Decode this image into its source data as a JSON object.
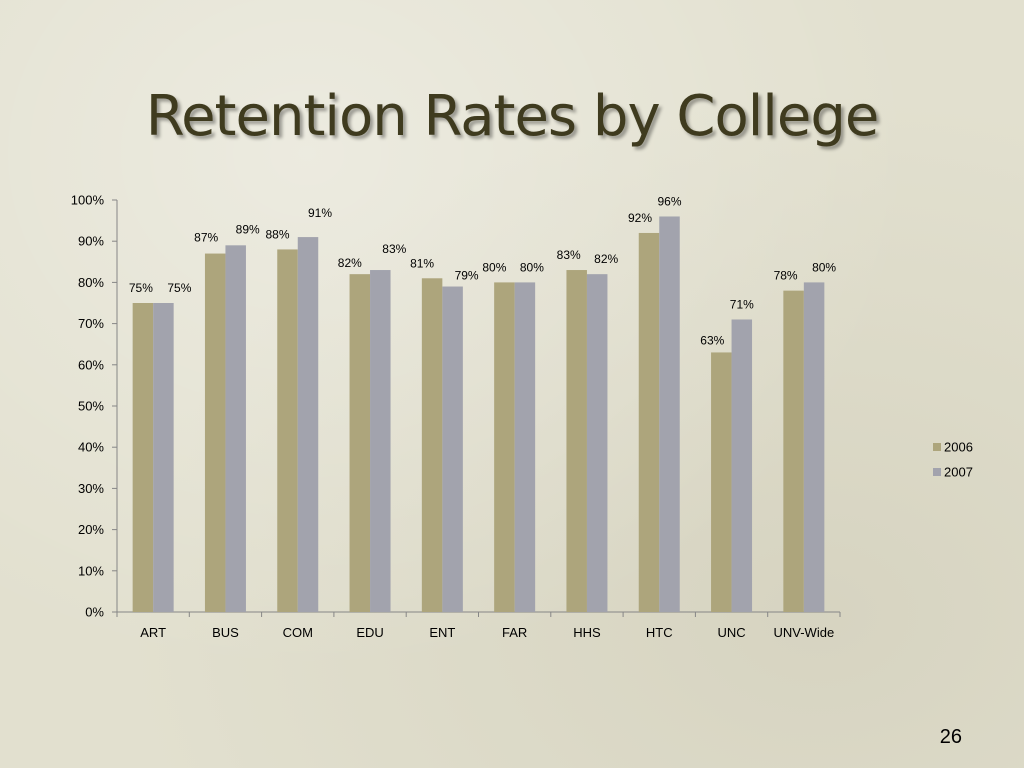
{
  "slide": {
    "title": "Retention Rates by College",
    "page_number": "26",
    "colors": {
      "background": "#e2e0cf",
      "title": "#3f3b1f"
    }
  },
  "chart_data": {
    "type": "bar",
    "title": "",
    "xlabel": "",
    "ylabel": "",
    "categories": [
      "ART",
      "BUS",
      "COM",
      "EDU",
      "ENT",
      "FAR",
      "HHS",
      "HTC",
      "UNC",
      "UNV-Wide"
    ],
    "series": [
      {
        "name": "2006",
        "color": "#ada57c",
        "values": [
          75,
          87,
          88,
          82,
          81,
          80,
          83,
          92,
          63,
          78
        ]
      },
      {
        "name": "2007",
        "color": "#a2a3ad",
        "values": [
          75,
          89,
          91,
          83,
          79,
          80,
          82,
          96,
          71,
          80
        ]
      }
    ],
    "data_labels": [
      [
        "75%",
        "87%",
        "88%",
        "82%",
        "81%",
        "80%",
        "83%",
        "92%",
        "63%",
        "78%"
      ],
      [
        "75%",
        "89%",
        "91%",
        "83%",
        "79%",
        "80%",
        "82%",
        "96%",
        "71%",
        "80%"
      ]
    ],
    "ylim": [
      0,
      100
    ],
    "y_ticks": [
      0,
      10,
      20,
      30,
      40,
      50,
      60,
      70,
      80,
      90,
      100
    ],
    "y_tick_labels": [
      "0%",
      "10%",
      "20%",
      "30%",
      "40%",
      "50%",
      "60%",
      "70%",
      "80%",
      "90%",
      "100%"
    ],
    "grid": false,
    "legend_position": "right"
  }
}
